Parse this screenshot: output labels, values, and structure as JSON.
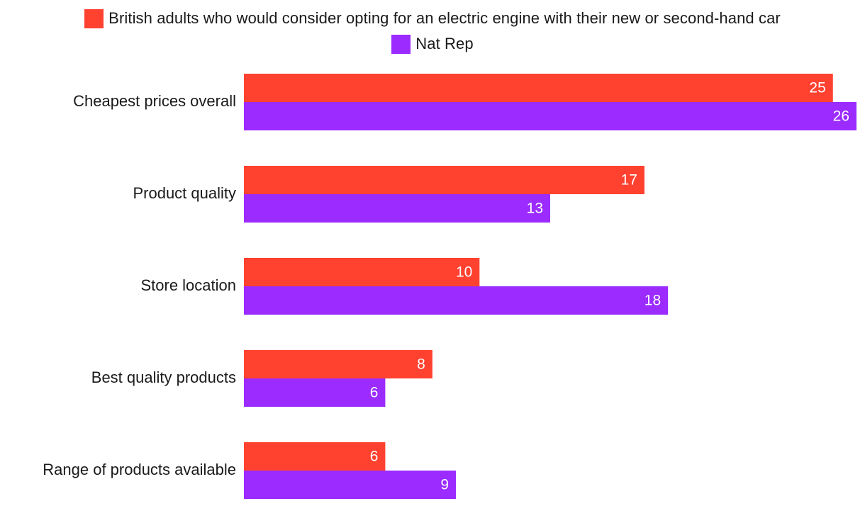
{
  "chart_data": {
    "type": "bar",
    "orientation": "horizontal",
    "categories": [
      "Cheapest prices overall",
      "Product quality",
      "Store location",
      "Best quality products",
      "Range of products available"
    ],
    "series": [
      {
        "name": "British adults who would consider opting for an electric engine with their new or second-hand car",
        "color": "#ff4130",
        "values": [
          25,
          17,
          10,
          8,
          6
        ]
      },
      {
        "name": "Nat Rep",
        "color": "#9b2bff",
        "values": [
          26,
          13,
          18,
          6,
          9
        ]
      }
    ],
    "xlim": [
      0,
      26
    ],
    "grid": false,
    "legend_position": "top-center",
    "data_labels": true,
    "title": "",
    "xlabel": "",
    "ylabel": ""
  }
}
